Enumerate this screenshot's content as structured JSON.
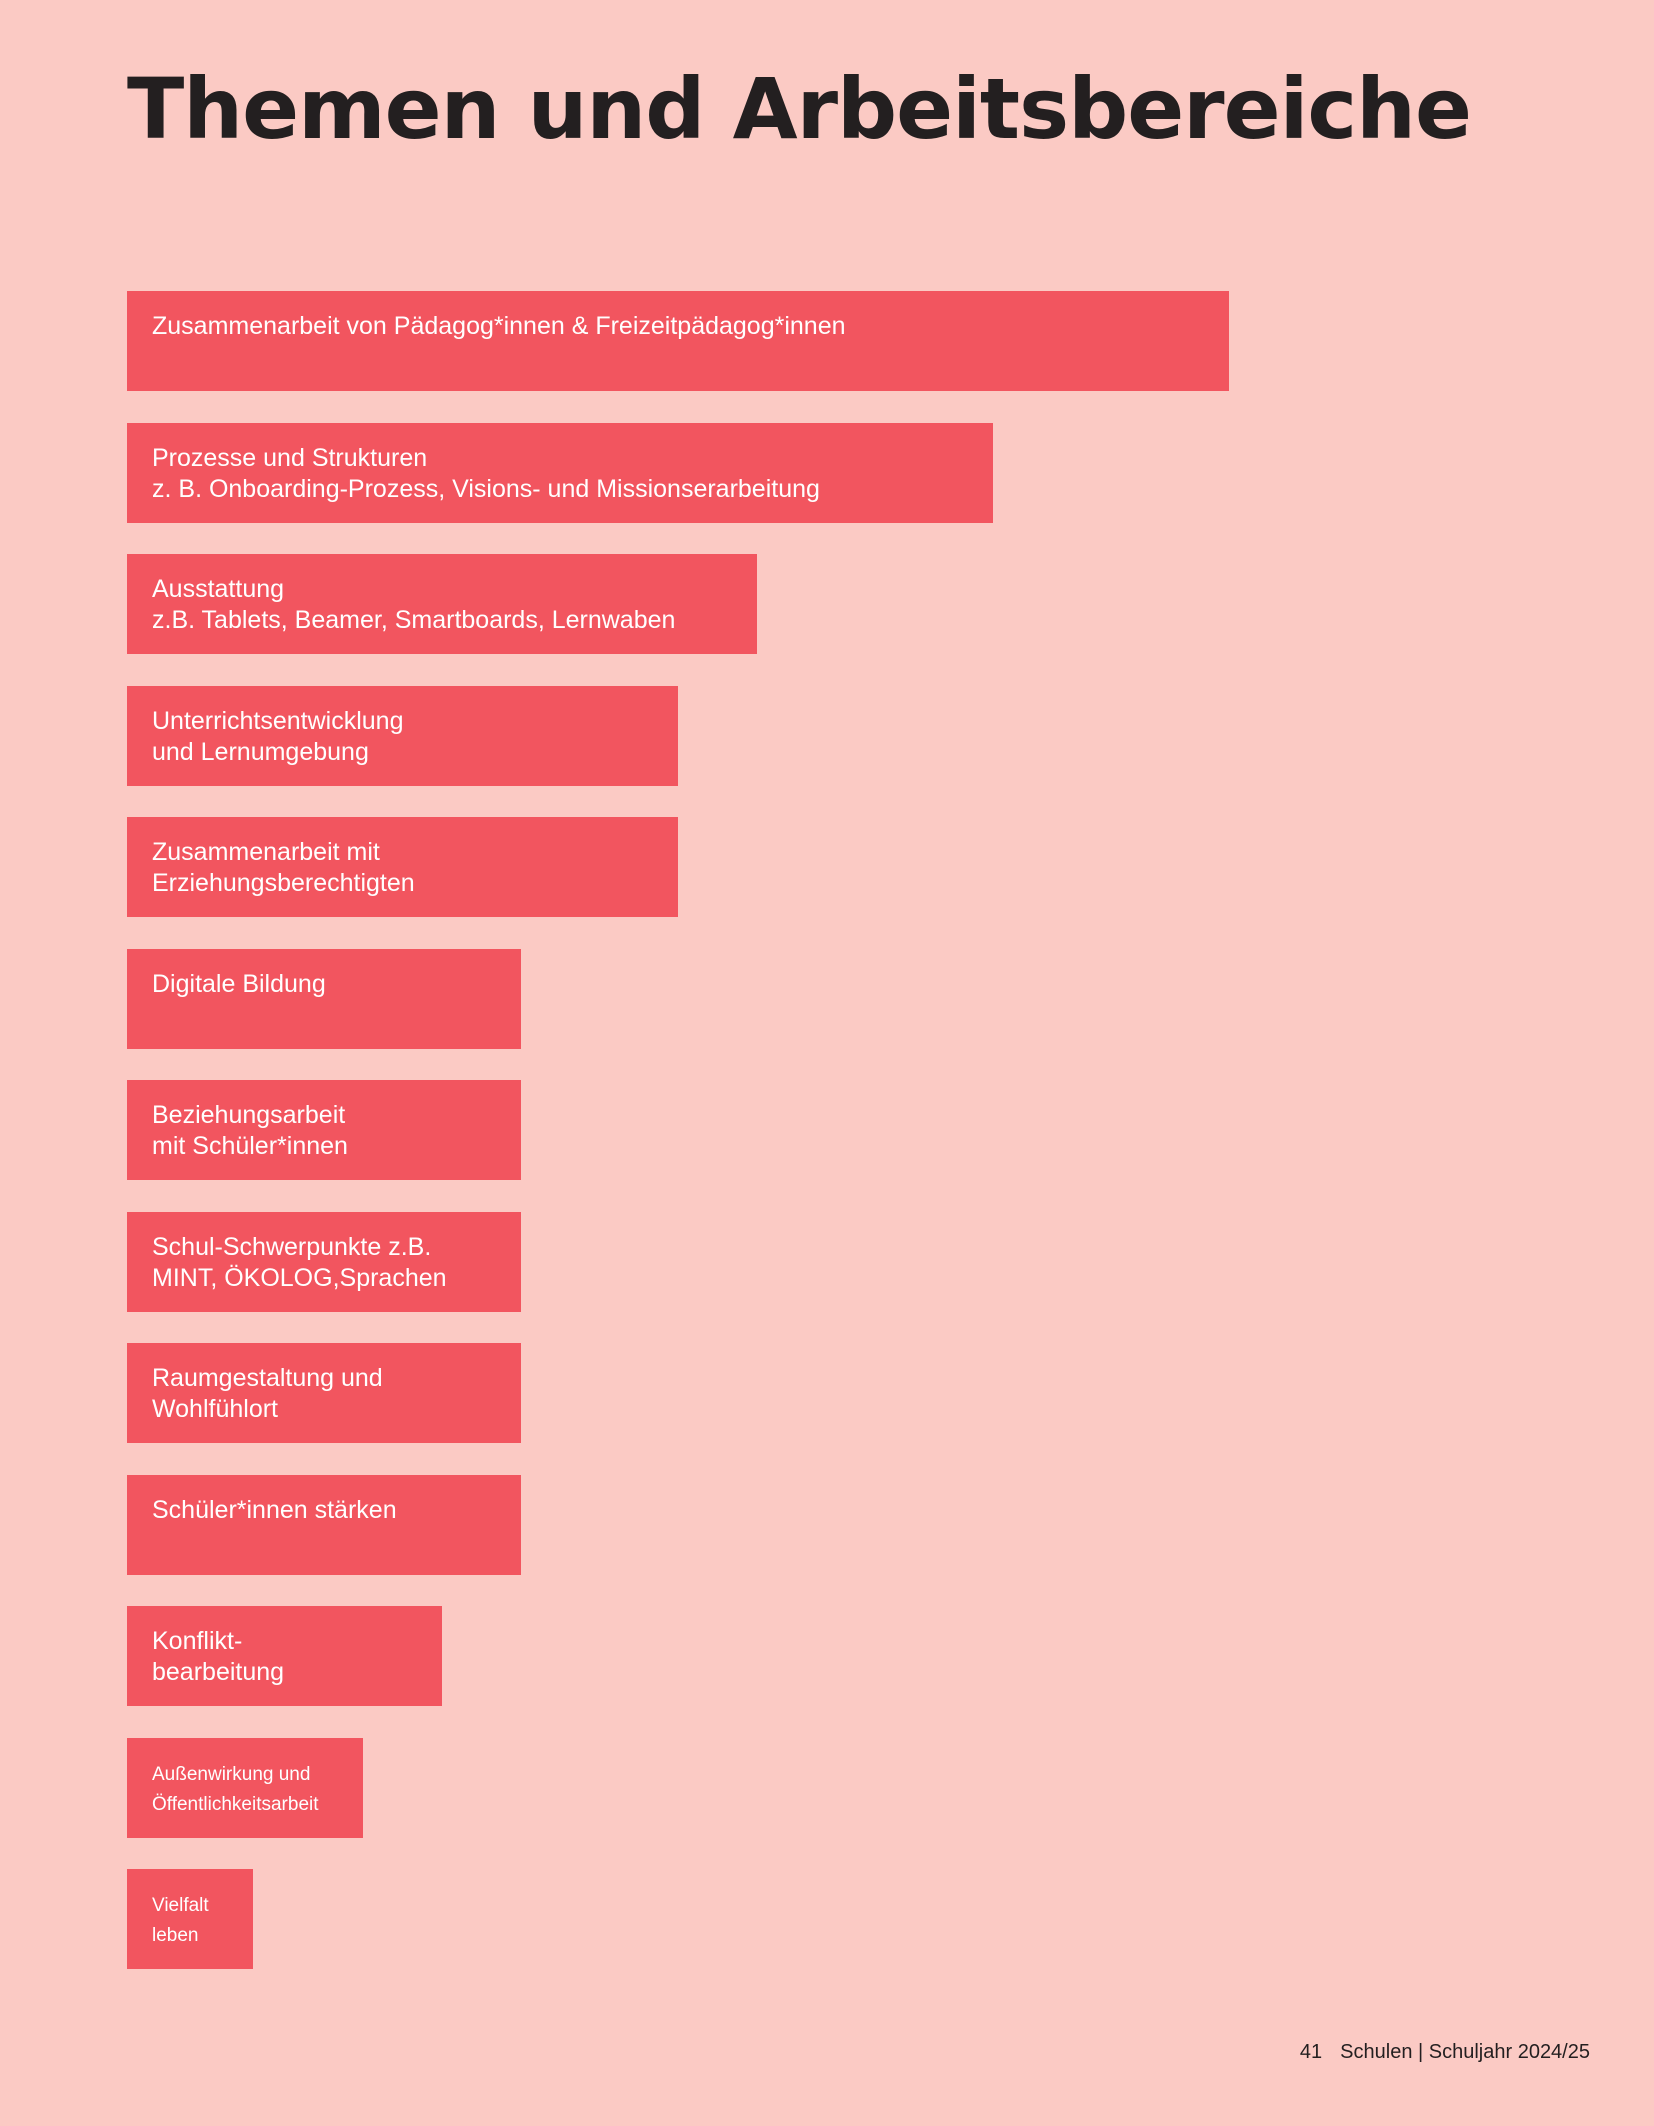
{
  "title": "Themen und Arbeitsbereiche",
  "footer": {
    "page_number": "41",
    "publication": "Schulen | Schuljahr 2024/25"
  },
  "colors": {
    "background": "#fbcac4",
    "bar": "#f2555f",
    "label": "#ffffff",
    "text": "#231f20"
  },
  "chart_data": {
    "type": "bar",
    "orientation": "horizontal",
    "title": "Themen und Arbeitsbereiche",
    "xlabel": "",
    "ylabel": "",
    "grid": false,
    "legend": "none",
    "axes_visible": false,
    "value_scale": "relative (no values printed; proportional to bar length)",
    "categories": [
      "Zusammenarbeit von Pädagog*innen & Freizeitpädagog*innen",
      "Prozesse und Strukturen\nz. B. Onboarding-Prozess, Visions- und Missionserarbeitung",
      "Ausstattung\nz.B. Tablets, Beamer, Smartboards, Lernwaben",
      "Unterrichtsentwicklung\nund Lernumgebung",
      "Zusammenarbeit mit\nErziehungsberechtigten",
      "Digitale Bildung",
      "Beziehungsarbeit\nmit Schüler*innen",
      "Schul-Schwerpunkte z.B.\nMINT, ÖKOLOG,Sprachen",
      "Raumgestaltung und\nWohlfühlort",
      "Schüler*innen stärken",
      "Konflikt-\nbearbeitung",
      "Außenwirkung und\nÖffentlichkeitsarbeit",
      "Vielfalt\nleben"
    ],
    "values": [
      14,
      11,
      8,
      7,
      7,
      5,
      5,
      5,
      5,
      5,
      4,
      3,
      1.6
    ],
    "xlim": [
      0,
      14
    ]
  }
}
